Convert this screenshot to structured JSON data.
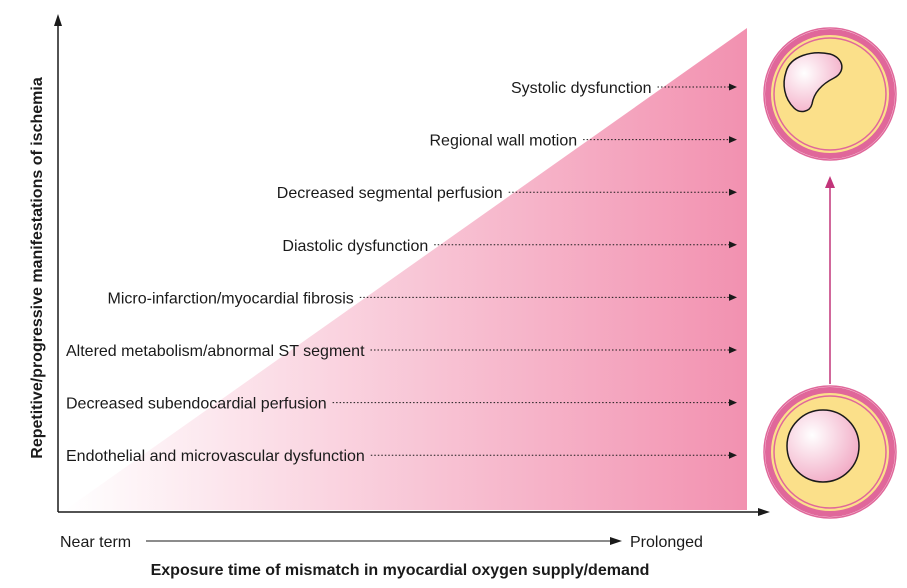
{
  "y_axis_label": "Repetitive/progressive manifestations of ischemia",
  "x_axis_label": "Exposure time of mismatch in myocardial oxygen supply/demand",
  "x_axis_start": "Near term",
  "x_axis_end": "Prolonged",
  "manifestations": [
    "Systolic dysfunction",
    "Regional wall motion",
    "Decreased segmental perfusion",
    "Diastolic dysfunction",
    "Micro-infarction/myocardial fibrosis",
    "Altered metabolism/abnormal ST segment",
    "Decreased subendocardial perfusion",
    "Endothelial and microvascular dysfunction"
  ],
  "colors": {
    "gradient_start": "#ffffff",
    "gradient_end": "#f291b0",
    "vessel_outer_ring": "#e0679a",
    "vessel_wall": "#fbe08a",
    "vessel_arrow": "#c2357a",
    "axis": "#1a1a1a"
  },
  "icons": {
    "top_vessel": "vessel-cross-section-narrowed-icon",
    "bottom_vessel": "vessel-cross-section-normal-icon"
  }
}
